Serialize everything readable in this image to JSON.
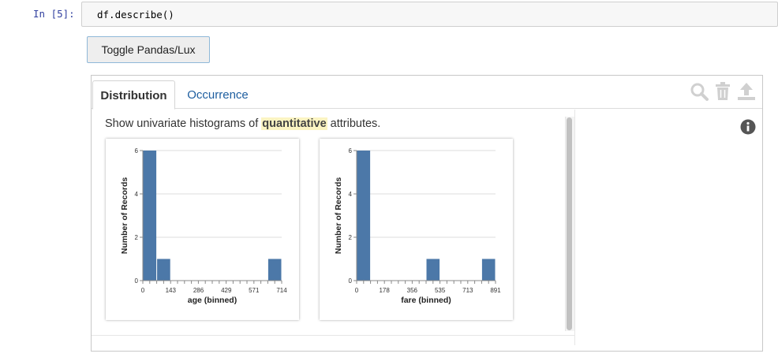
{
  "cell": {
    "prompt": "In [5]:",
    "code": "df.describe()"
  },
  "toggle_button": {
    "label": "Toggle Pandas/Lux"
  },
  "lux": {
    "tabs": [
      {
        "label": "Distribution",
        "active": true
      },
      {
        "label": "Occurrence",
        "active": false
      }
    ],
    "toolbar_icons": [
      "search-icon",
      "trash-icon",
      "upload-icon"
    ],
    "description": {
      "before": "Show univariate histograms of ",
      "highlight": "quantitative",
      "after": " attributes."
    },
    "info_icon": "info-icon",
    "colors": {
      "bar": "#4c78a8",
      "tab_link": "#1f5fa0",
      "highlight": "#fbf4c2",
      "prompt": "#303f9f"
    }
  },
  "chart_data": [
    {
      "type": "bar",
      "title": "",
      "xlabel": "age (binned)",
      "ylabel": "Number of Records",
      "x_ticks": [
        "0",
        "143",
        "286",
        "429",
        "571",
        "714"
      ],
      "y_ticks": [
        "0",
        "2",
        "4",
        "6"
      ],
      "ylim": [
        0,
        6
      ],
      "xlim": [
        0,
        714
      ],
      "bins": [
        {
          "start": 0,
          "end": 71.4,
          "count": 6
        },
        {
          "start": 71.4,
          "end": 142.8,
          "count": 1
        },
        {
          "start": 642.6,
          "end": 714,
          "count": 1
        }
      ],
      "grid": true
    },
    {
      "type": "bar",
      "title": "",
      "xlabel": "fare (binned)",
      "ylabel": "Number of Records",
      "x_ticks": [
        "0",
        "178",
        "356",
        "535",
        "713",
        "891"
      ],
      "y_ticks": [
        "0",
        "2",
        "4",
        "6"
      ],
      "ylim": [
        0,
        6
      ],
      "xlim": [
        0,
        891
      ],
      "bins": [
        {
          "start": 0,
          "end": 89.1,
          "count": 6
        },
        {
          "start": 445.5,
          "end": 534.6,
          "count": 1
        },
        {
          "start": 801.9,
          "end": 891,
          "count": 1
        }
      ],
      "grid": true
    }
  ]
}
